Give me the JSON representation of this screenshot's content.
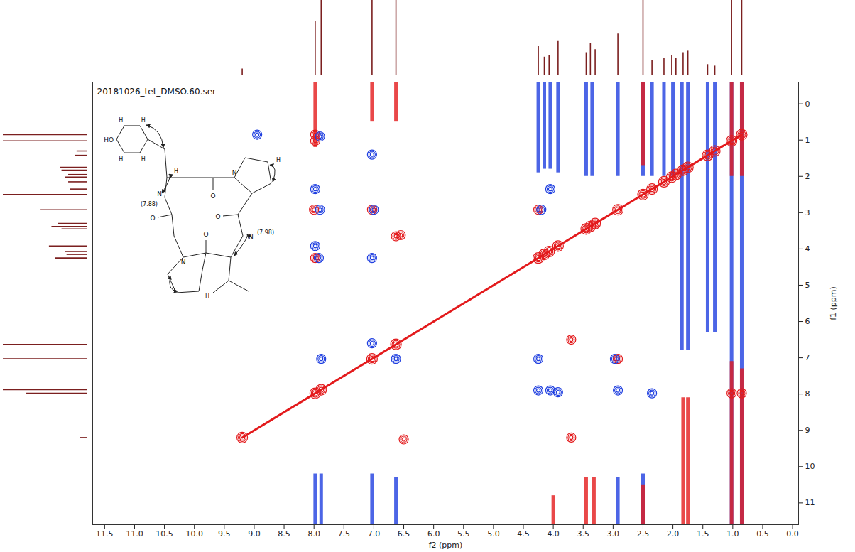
{
  "chart_data": {
    "type": "nmr_2d",
    "title": "20181026_tet_DMSO.60.ser",
    "x_label": "f2 (ppm)",
    "y_label": "f1 (ppm)",
    "xlim": [
      11.7,
      -0.1
    ],
    "xticks": [
      11.5,
      {
        "value": 11,
        "label": "11.0"
      },
      10.5,
      {
        "value": 10,
        "label": "10.0"
      },
      9.5,
      {
        "value": 9,
        "label": "9.0"
      },
      8.5,
      {
        "value": 8,
        "label": "8.0"
      },
      7.5,
      {
        "value": 7,
        "label": "7.0"
      },
      6.5,
      {
        "value": 6,
        "label": "6.0"
      },
      5.5,
      {
        "value": 5,
        "label": "5.0"
      },
      4.5,
      {
        "value": 4,
        "label": "4.0"
      },
      3.5,
      {
        "value": 3,
        "label": "3.0"
      },
      2.5,
      {
        "value": 2,
        "label": "2.0"
      },
      1.5,
      {
        "value": 1,
        "label": "1.0"
      },
      0.5,
      {
        "value": 0,
        "label": "0.0"
      }
    ],
    "ylim": [
      -0.6,
      11.6
    ],
    "yticks": [
      0,
      1,
      2,
      3,
      4,
      5,
      6,
      7,
      8,
      9,
      10,
      11
    ],
    "color": "#e31a1c",
    "projection": {
      "ppm": [
        9.2,
        7.98,
        7.88,
        7.03,
        6.63,
        4.25,
        4.15,
        4.07,
        3.92,
        3.45,
        3.38,
        3.3,
        2.92,
        2.5,
        2.35,
        2.15,
        2.02,
        1.95,
        1.83,
        1.75,
        1.42,
        1.3,
        1.02,
        0.85
      ],
      "intensity": [
        8,
        72,
        130,
        130,
        130,
        38,
        24,
        26,
        45,
        30,
        42,
        34,
        55,
        130,
        20,
        22,
        26,
        22,
        30,
        32,
        14,
        12,
        130,
        130
      ],
      "lim": [
        0,
        100
      ],
      "color": "#7b1f1f"
    },
    "cross_peaks": {
      "f2": [
        7.98,
        7.98,
        7.9,
        8.0,
        7.9,
        7.03,
        7.0,
        4.25,
        4.2,
        7.98,
        4.05,
        7.98,
        7.98,
        7.92,
        7.03,
        6.63,
        6.55,
        7.03,
        8.95,
        4.25,
        2.92,
        2.97,
        7.88,
        4.25,
        4.05,
        3.92,
        2.92,
        2.35,
        1.02,
        0.85,
        7.03,
        6.63,
        3.7,
        6.5,
        3.7
      ],
      "f1": [
        0.85,
        1.02,
        0.9,
        2.92,
        2.92,
        2.92,
        2.92,
        2.92,
        2.92,
        2.35,
        2.35,
        3.92,
        4.25,
        4.25,
        4.25,
        3.65,
        3.62,
        1.4,
        0.85,
        7.03,
        7.03,
        7.03,
        7.03,
        7.9,
        7.9,
        7.95,
        7.9,
        7.98,
        7.98,
        7.98,
        6.6,
        7.03,
        9.2,
        9.25,
        6.5
      ],
      "colors": [
        "#e31a1c",
        "#e31a1c",
        "#1f3fe0",
        "#e31a1c",
        "#1f3fe0",
        "#e31a1c",
        "#1f3fe0",
        "#e31a1c",
        "#1f3fe0",
        "#1f3fe0",
        "#1f3fe0",
        "#1f3fe0",
        "#e31a1c",
        "#1f3fe0",
        "#1f3fe0",
        "#e31a1c",
        "#e31a1c",
        "#1f3fe0",
        "#1f3fe0",
        "#1f3fe0",
        "#e31a1c",
        "#1f3fe0",
        "#1f3fe0",
        "#1f3fe0",
        "#1f3fe0",
        "#1f3fe0",
        "#1f3fe0",
        "#1f3fe0",
        "#e31a1c",
        "#e31a1c",
        "#1f3fe0",
        "#1f3fe0",
        "#e31a1c",
        "#e31a1c",
        "#e31a1c"
      ]
    },
    "streaks": {
      "f2": [
        4.25,
        4.15,
        4.05,
        3.92,
        3.45,
        3.35,
        2.92,
        2.5,
        2.35,
        2.15,
        2.0,
        1.85,
        1.75,
        1.42,
        1.3,
        1.02,
        0.85,
        7.98,
        7.03,
        6.63,
        2.5,
        1.02,
        0.85,
        7.98,
        7.88,
        7.03,
        6.63,
        2.92,
        2.5,
        3.45,
        3.32,
        2.5,
        1.83,
        1.75,
        1.02,
        0.85,
        4.0
      ],
      "f1_from": [
        -0.6,
        -0.6,
        -0.6,
        -0.6,
        -0.6,
        -0.6,
        -0.6,
        -0.6,
        -0.6,
        -0.6,
        -0.6,
        -0.6,
        -0.6,
        -0.6,
        -0.6,
        -0.6,
        -0.6,
        -0.6,
        -0.6,
        -0.6,
        -0.6,
        -0.6,
        -0.6,
        10.2,
        10.2,
        10.2,
        10.3,
        10.3,
        10.2,
        10.3,
        10.3,
        10.5,
        8.1,
        8.1,
        7.1,
        7.3,
        10.8
      ],
      "f1_to": [
        1.9,
        1.8,
        1.8,
        1.9,
        2.0,
        2.0,
        2.0,
        2.0,
        2.0,
        2.0,
        2.0,
        6.8,
        6.8,
        6.3,
        6.3,
        11.6,
        11.6,
        1.2,
        0.5,
        0.5,
        1.7,
        2.0,
        2.0,
        11.6,
        11.6,
        11.6,
        11.6,
        11.6,
        11.6,
        11.6,
        11.6,
        11.6,
        11.6,
        11.6,
        11.6,
        11.6,
        11.6
      ],
      "colors": [
        "#1f3fe0",
        "#1f3fe0",
        "#1f3fe0",
        "#1f3fe0",
        "#1f3fe0",
        "#1f3fe0",
        "#1f3fe0",
        "#1f3fe0",
        "#1f3fe0",
        "#1f3fe0",
        "#1f3fe0",
        "#1f3fe0",
        "#1f3fe0",
        "#1f3fe0",
        "#1f3fe0",
        "#1f3fe0",
        "#1f3fe0",
        "#e31a1c",
        "#e31a1c",
        "#e31a1c",
        "#e31a1c",
        "#e31a1c",
        "#e31a1c",
        "#1f3fe0",
        "#1f3fe0",
        "#1f3fe0",
        "#1f3fe0",
        "#1f3fe0",
        "#1f3fe0",
        "#e31a1c",
        "#e31a1c",
        "#e31a1c",
        "#e31a1c",
        "#e31a1c",
        "#e31a1c",
        "#e31a1c",
        "#e31a1c"
      ]
    },
    "inset": {
      "hydroxyl": "HO",
      "nitrogen": "N",
      "oxygen": "O",
      "hydrogen": "H",
      "nh_shift_labels": [
        "(7.88)",
        "(7.98)"
      ]
    }
  }
}
